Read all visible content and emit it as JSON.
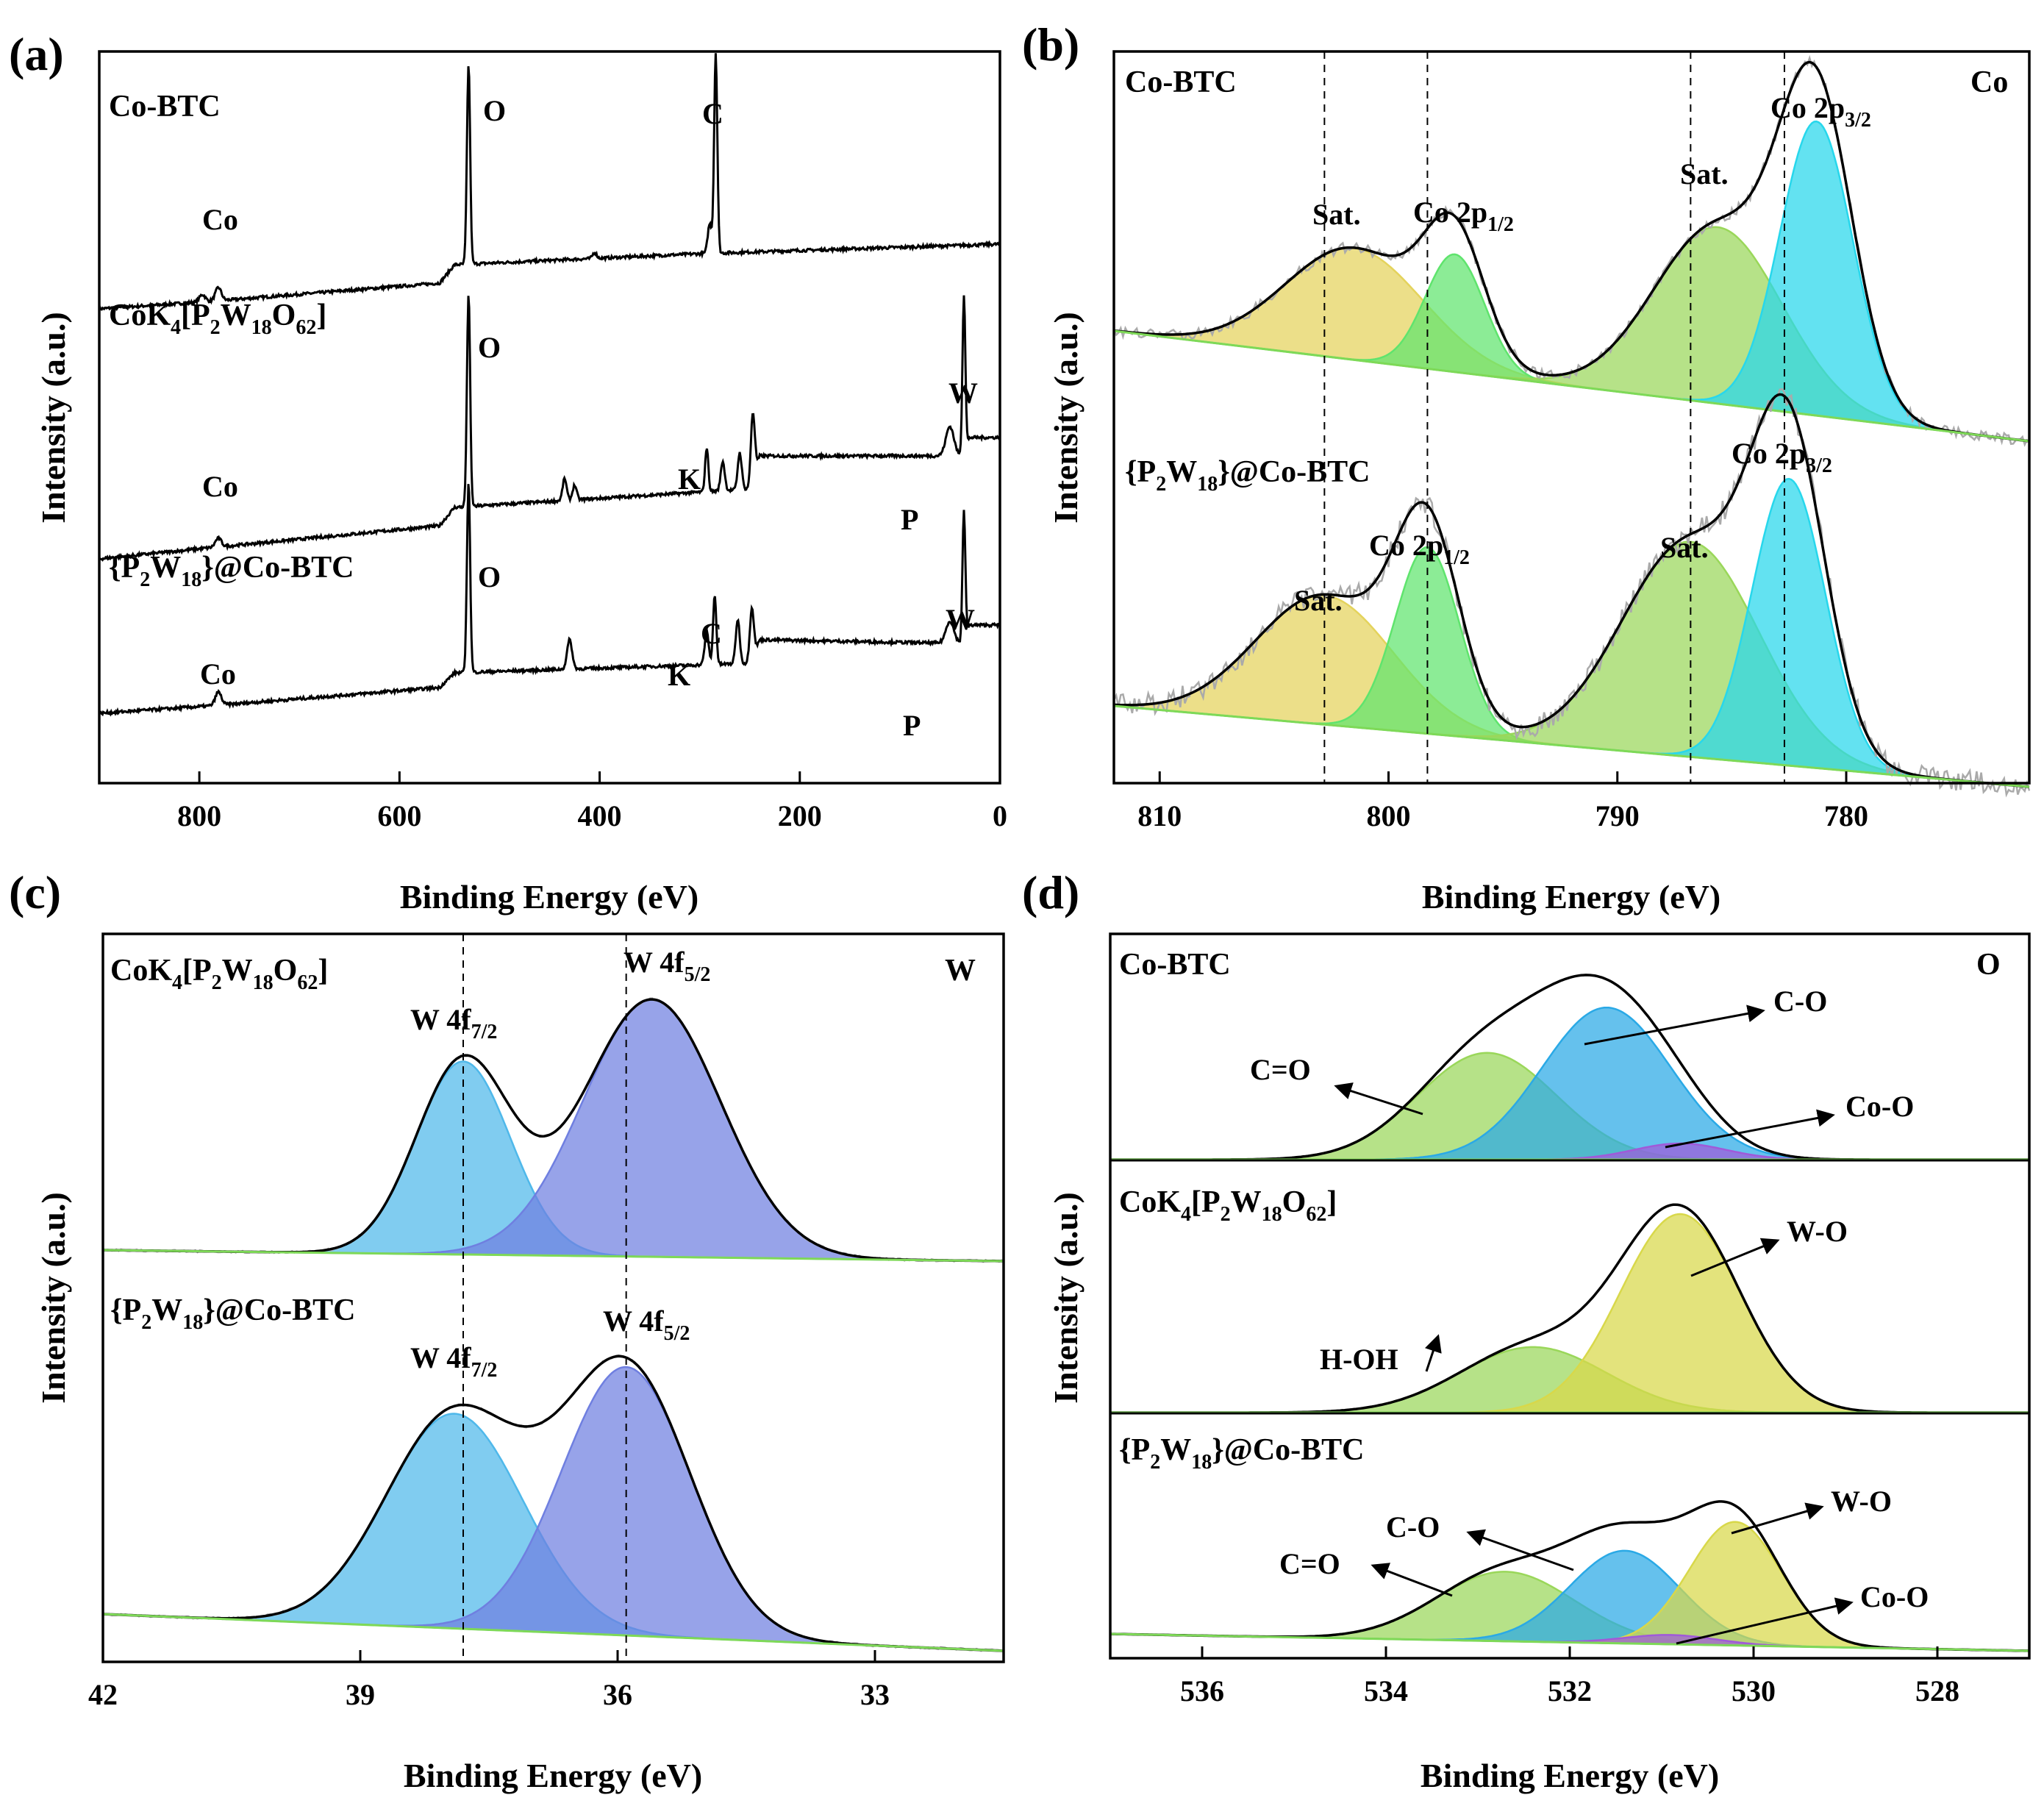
{
  "colors": {
    "envelope": "#000000",
    "raw": "#aaaaaa",
    "yellow": "#e4d35c",
    "green": "#5fe46d",
    "lightgreen": "#9ad75a",
    "cyan": "#27d7ec",
    "blue": "#2aa9e6",
    "purple": "#a05ad9",
    "wlight": "#4fb8ea",
    "wdark": "#6f7fe0",
    "olive": "#d8d84a"
  },
  "chart_data": [
    {
      "panel": "(a)",
      "type": "line",
      "xlabel": "Binding Energy (eV)",
      "ylabel": "Intensity (a.u.)",
      "xlim": [
        900,
        0
      ],
      "xticks": [
        800,
        600,
        400,
        200,
        0
      ],
      "series": [
        {
          "name": "Co-BTC",
          "peaks": [
            {
              "label": "Co",
              "x": 781
            },
            {
              "label": "O",
              "x": 531
            },
            {
              "label": "C",
              "x": 284
            }
          ]
        },
        {
          "name": "CoK4[P2W18O62]",
          "peaks": [
            {
              "label": "Co",
              "x": 781
            },
            {
              "label": "O",
              "x": 531
            },
            {
              "label": "K",
              "x": 293
            },
            {
              "label": "P",
              "x": 133
            },
            {
              "label": "W",
              "x": 36
            }
          ]
        },
        {
          "name": "{P2W18}@Co-BTC",
          "peaks": [
            {
              "label": "Co",
              "x": 781
            },
            {
              "label": "O",
              "x": 531
            },
            {
              "label": "C",
              "x": 285
            },
            {
              "label": "K",
              "x": 293
            },
            {
              "label": "P",
              "x": 133
            },
            {
              "label": "W",
              "x": 36
            }
          ]
        }
      ]
    },
    {
      "panel": "(b)",
      "type": "line",
      "element": "Co",
      "xlabel": "Binding Energy (eV)",
      "ylabel": "Intensity (a.u.)",
      "xlim": [
        812,
        772
      ],
      "xticks": [
        810,
        800,
        790,
        780
      ],
      "reference_lines": [
        802.8,
        798.3,
        786.8,
        782.7
      ],
      "series": [
        {
          "name": "Co-BTC",
          "components": [
            {
              "label": "Sat.",
              "center": 801.5,
              "height": 0.38,
              "color": "yellow"
            },
            {
              "label": "Co 2p1/2",
              "center": 797.1,
              "height": 0.4,
              "color": "green"
            },
            {
              "label": "Sat.",
              "center": 785.6,
              "height": 0.6,
              "color": "lightgreen"
            },
            {
              "label": "Co 2p3/2",
              "center": 781.3,
              "height": 1.0,
              "color": "cyan"
            }
          ]
        },
        {
          "name": "{P2W18}@Co-BTC",
          "components": [
            {
              "label": "Sat.",
              "center": 802.8,
              "height": 0.45,
              "color": "yellow"
            },
            {
              "label": "Co 2p1/2",
              "center": 798.3,
              "height": 0.65,
              "color": "green"
            },
            {
              "label": "Sat.",
              "center": 786.8,
              "height": 0.75,
              "color": "lightgreen"
            },
            {
              "label": "Co 2p3/2",
              "center": 782.5,
              "height": 1.0,
              "color": "cyan"
            }
          ]
        }
      ]
    },
    {
      "panel": "(c)",
      "type": "line",
      "element": "W",
      "xlabel": "Binding Energy (eV)",
      "ylabel": "Intensity (a.u.)",
      "xlim": [
        42,
        31.5
      ],
      "xticks": [
        42,
        39,
        36,
        33
      ],
      "reference_lines": [
        37.8,
        35.9
      ],
      "series": [
        {
          "name": "CoK4[P2W18O62]",
          "components": [
            {
              "label": "W 4f7/2",
              "center": 37.8,
              "height": 0.75,
              "color": "wlight"
            },
            {
              "label": "W 4f5/2",
              "center": 35.6,
              "height": 1.0,
              "color": "wdark"
            }
          ]
        },
        {
          "name": "{P2W18}@Co-BTC",
          "components": [
            {
              "label": "W 4f7/2",
              "center": 37.9,
              "height": 0.8,
              "color": "wlight"
            },
            {
              "label": "W 4f5/2",
              "center": 35.9,
              "height": 1.0,
              "color": "wdark"
            }
          ]
        }
      ]
    },
    {
      "panel": "(d)",
      "type": "line",
      "element": "O",
      "xlabel": "Binding Energy (eV)",
      "ylabel": "Intensity (a.u.)",
      "xlim": [
        537,
        527
      ],
      "xticks": [
        536,
        534,
        532,
        530,
        528
      ],
      "series": [
        {
          "name": "Co-BTC",
          "components": [
            {
              "label": "C=O",
              "center": 532.9,
              "height": 0.66,
              "color": "lightgreen"
            },
            {
              "label": "C-O",
              "center": 531.6,
              "height": 0.94,
              "color": "blue"
            },
            {
              "label": "Co-O",
              "center": 530.8,
              "height": 0.1,
              "color": "purple"
            }
          ]
        },
        {
          "name": "CoK4[P2W18O62]",
          "components": [
            {
              "label": "H-OH",
              "center": 532.4,
              "height": 0.33,
              "color": "lightgreen"
            },
            {
              "label": "W-O",
              "center": 530.8,
              "height": 1.0,
              "color": "olive"
            }
          ]
        },
        {
          "name": "{P2W18}@Co-BTC",
          "components": [
            {
              "label": "C=O",
              "center": 532.7,
              "height": 0.45,
              "color": "lightgreen"
            },
            {
              "label": "C-O",
              "center": 531.4,
              "height": 0.6,
              "color": "blue"
            },
            {
              "label": "W-O",
              "center": 530.2,
              "height": 0.8,
              "color": "olive"
            },
            {
              "label": "Co-O",
              "center": 530.9,
              "height": 0.06,
              "color": "purple"
            }
          ]
        }
      ]
    }
  ]
}
